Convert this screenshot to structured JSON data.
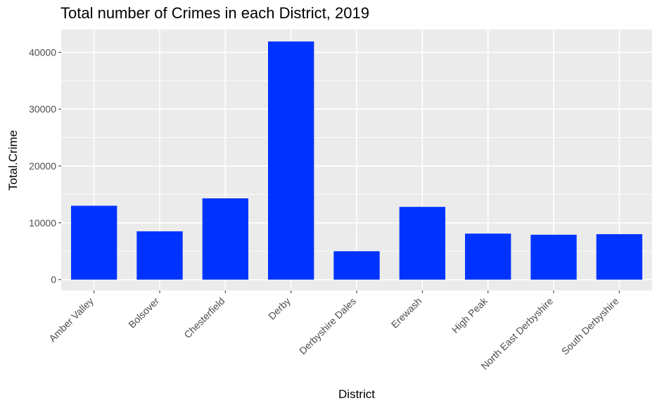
{
  "chart_data": {
    "type": "bar",
    "title": "Total number of Crimes in each District, 2019",
    "xlabel": "District",
    "ylabel": "Total.Crime",
    "categories": [
      "Amber Valley",
      "Bolsover",
      "Chesterfield",
      "Derby",
      "Derbyshire Dales",
      "Erewash",
      "High Peak",
      "North East Derbyshire",
      "South Derbyshire"
    ],
    "values": [
      13000,
      8500,
      14300,
      41900,
      5000,
      12800,
      8100,
      7900,
      8000
    ],
    "yticks": [
      0,
      10000,
      20000,
      30000,
      40000
    ],
    "ylim": [
      -1900,
      44000
    ],
    "grid": true,
    "legend": "none",
    "colors": {
      "bar": "#0033ff",
      "panel": "#ebebeb",
      "grid": "#ffffff"
    }
  }
}
